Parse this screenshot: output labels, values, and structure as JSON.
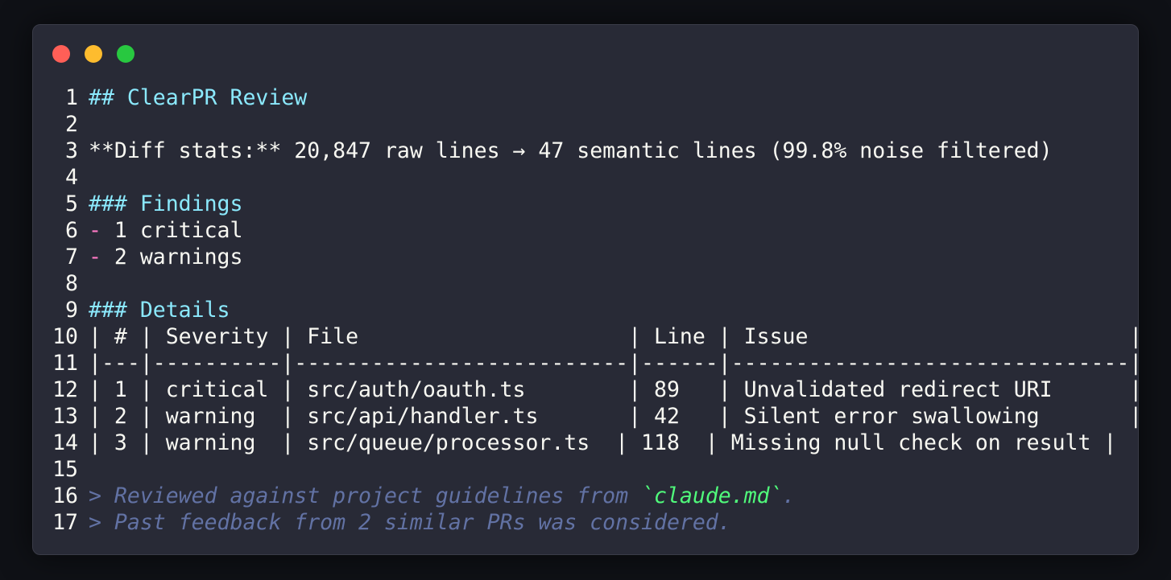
{
  "window": {
    "controls": [
      {
        "name": "close",
        "color": "#ff5f57"
      },
      {
        "name": "minimize",
        "color": "#febc2e"
      },
      {
        "name": "maximize",
        "color": "#28c840"
      }
    ]
  },
  "colors": {
    "heading": "#8be9fd",
    "bullet": "#ff79c6",
    "quote": "#6272a4",
    "inline_code": "#50fa7b",
    "text": "#f8f8f2"
  },
  "lines": [
    {
      "n": "1",
      "segments": [
        {
          "t": "## ClearPR Review",
          "s": "heading"
        }
      ]
    },
    {
      "n": "2",
      "segments": []
    },
    {
      "n": "3",
      "segments": [
        {
          "t": "**Diff stats:** 20,847 raw lines → 47 semantic lines (99.8% noise filtered)",
          "s": "plain"
        }
      ]
    },
    {
      "n": "4",
      "segments": []
    },
    {
      "n": "5",
      "segments": [
        {
          "t": "### Findings",
          "s": "heading"
        }
      ]
    },
    {
      "n": "6",
      "segments": [
        {
          "t": "-",
          "s": "bullet"
        },
        {
          "t": " 1 critical",
          "s": "plain"
        }
      ]
    },
    {
      "n": "7",
      "segments": [
        {
          "t": "-",
          "s": "bullet"
        },
        {
          "t": " 2 warnings",
          "s": "plain"
        }
      ]
    },
    {
      "n": "8",
      "segments": []
    },
    {
      "n": "9",
      "segments": [
        {
          "t": "### Details",
          "s": "heading"
        }
      ]
    },
    {
      "n": "10",
      "segments": [
        {
          "t": "| # | Severity | File                     | Line | Issue                         |",
          "s": "plain"
        }
      ]
    },
    {
      "n": "11",
      "segments": [
        {
          "t": "|---|----------|--------------------------|------|-------------------------------|",
          "s": "plain"
        }
      ]
    },
    {
      "n": "12",
      "segments": [
        {
          "t": "| 1 | critical | src/auth/oauth.ts        | 89   | Unvalidated redirect URI      |",
          "s": "plain"
        }
      ]
    },
    {
      "n": "13",
      "segments": [
        {
          "t": "| 2 | warning  | src/api/handler.ts       | 42   | Silent error swallowing       |",
          "s": "plain"
        }
      ]
    },
    {
      "n": "14",
      "segments": [
        {
          "t": "| 3 | warning  | src/queue/processor.ts  | 118  | Missing null check on result |",
          "s": "plain"
        }
      ]
    },
    {
      "n": "15",
      "segments": []
    },
    {
      "n": "16",
      "segments": [
        {
          "t": "> Reviewed against project guidelines from ",
          "s": "quote"
        },
        {
          "t": "`claude.md`",
          "s": "inline-code"
        },
        {
          "t": ".",
          "s": "quote"
        }
      ]
    },
    {
      "n": "17",
      "segments": [
        {
          "t": "> Past feedback from 2 similar PRs was considered.",
          "s": "quote"
        }
      ]
    }
  ]
}
